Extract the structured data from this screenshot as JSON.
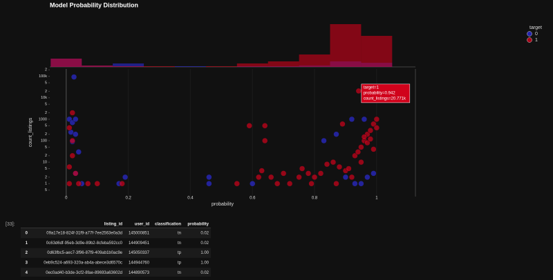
{
  "chart_data": {
    "type": "scatter",
    "title": "Model Probability Distribution",
    "xlabel": "probability",
    "ylabel": "count_listings",
    "xlim": [
      -0.053,
      1.125
    ],
    "xticks": [
      0,
      0.2,
      0.4,
      0.6,
      0.8,
      1
    ],
    "ylim": [
      0.25,
      220000
    ],
    "log_y": true,
    "yticks": [
      {
        "value": 0.5,
        "label": "5"
      },
      1,
      2,
      5,
      10,
      {
        "value": 20,
        "label": "2"
      },
      {
        "value": 50,
        "label": "5"
      },
      100,
      {
        "value": 200,
        "label": "2"
      },
      {
        "value": 500,
        "label": "5"
      },
      1000,
      {
        "value": 2000,
        "label": "2"
      },
      {
        "value": 5000,
        "label": "5"
      },
      {
        "value": 10000,
        "label": "10k"
      },
      {
        "value": 20000,
        "label": "2"
      },
      {
        "value": 50000,
        "label": "5"
      },
      {
        "value": 100000,
        "label": "100k"
      },
      {
        "value": 200000,
        "label": "2"
      }
    ],
    "legend_title": "target",
    "legend": "top-right",
    "series": [
      {
        "name": "0",
        "color": "#2b2bd6",
        "x": [
          0.025,
          0.01,
          0.02,
          0.03,
          0.015,
          0.03,
          0.04,
          0.02,
          0.03,
          0.05,
          0.17,
          0.19,
          0.46,
          0.46,
          0.6,
          0.83,
          0.87,
          0.92,
          0.96,
          0.97,
          0.99,
          0.9,
          0.93,
          0.95
        ],
        "values": [
          93000,
          1000,
          700,
          1000,
          250,
          200,
          30,
          90,
          3,
          1,
          1,
          2,
          2,
          1,
          1,
          100,
          200,
          1000,
          1000,
          2,
          3,
          2,
          1,
          1
        ]
      },
      {
        "name": "1",
        "color": "#d0021b",
        "x": [
          0.942,
          0.02,
          0.01,
          0.02,
          0.02,
          0.01,
          0.03,
          0.01,
          0.04,
          0.07,
          0.1,
          0.18,
          0.59,
          0.64,
          0.64,
          0.55,
          0.62,
          0.63,
          0.7,
          0.72,
          0.75,
          0.78,
          0.8,
          0.82,
          0.84,
          0.86,
          0.88,
          0.9,
          0.93,
          0.95,
          0.96,
          0.97,
          0.98,
          0.99,
          1.0,
          0.97,
          0.95,
          0.99,
          0.92,
          0.87,
          0.89,
          0.66,
          0.68,
          0.76,
          0.79,
          0.96,
          0.98,
          1.0,
          0.94,
          0.91
        ],
        "values": [
          20771,
          2000,
          400,
          100,
          20,
          6,
          3,
          1,
          1,
          1,
          1,
          1,
          500,
          500,
          100,
          1,
          2,
          4,
          3,
          1,
          2,
          3,
          2,
          3,
          8,
          10,
          6,
          4,
          20,
          50,
          100,
          200,
          300,
          600,
          1000,
          80,
          10,
          40,
          2,
          1,
          600,
          2,
          1,
          5,
          1,
          150,
          120,
          400,
          30,
          5
        ]
      }
    ],
    "hover": [
      "target=1",
      "probability=0.942",
      "count_listings=20.771k"
    ],
    "histogram": {
      "bins": [
        -0.05,
        0.05,
        0.15,
        0.25,
        0.35,
        0.45,
        0.55,
        0.65,
        0.75,
        0.85,
        0.95,
        1.05
      ],
      "ylim": [
        0,
        62
      ],
      "series": [
        {
          "values": [
            12,
            2,
            5,
            0,
            1,
            0,
            1,
            1,
            2,
            8,
            6
          ]
        },
        {
          "values": [
            12,
            2,
            1,
            1,
            0,
            1,
            5,
            8,
            18,
            62,
            45
          ]
        }
      ]
    }
  },
  "notebook": {
    "prompt": "[33]:",
    "table": {
      "columns": [
        "listing_id",
        "user_id",
        "classification",
        "probability"
      ],
      "rows": [
        [
          "0",
          "09a17e18-824f-31f9-a77f-7ee2563e0a3d",
          "145000851",
          "tn",
          "0.02"
        ],
        [
          "1",
          "0c63d6df-95eb-3d9e-89b2-8cfeba592cc0",
          "144909451",
          "tn",
          "0.02"
        ],
        [
          "2",
          "0d63fbc5-aec7-3f96-87f9-409ab1b0ac9e",
          "145050337",
          "tp",
          "1.00"
        ],
        [
          "3",
          "0eb9c524-a693-320a-ab4a-abece3d6570c",
          "144944760",
          "tp",
          "1.00"
        ],
        [
          "4",
          "0ec0ad40-b3de-3cf2-8fae-89693a63602d",
          "144890573",
          "tn",
          "0.02"
        ]
      ]
    }
  }
}
